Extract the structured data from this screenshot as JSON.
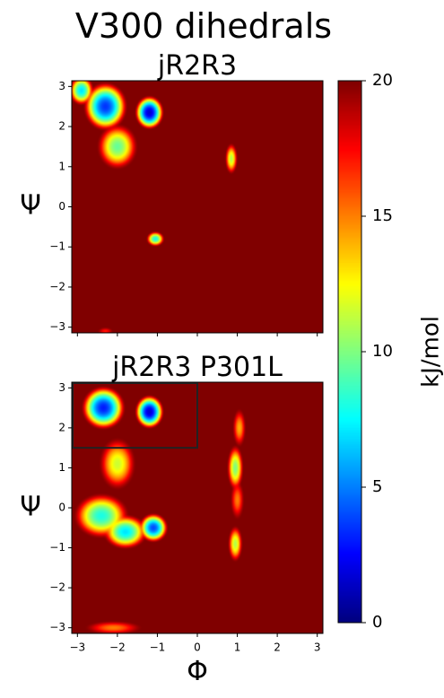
{
  "figure": {
    "title": "V300 dihedrals"
  },
  "chart_data": [
    {
      "type": "heatmap",
      "title": "jR2R3",
      "xlabel": "",
      "ylabel": "Ψ",
      "xlim": [
        -3.1416,
        3.1416
      ],
      "ylim": [
        -3.1416,
        3.1416
      ],
      "xticks": [
        -3,
        -2,
        -1,
        0,
        1,
        2,
        3
      ],
      "yticks": [
        -3,
        -2,
        -1,
        0,
        1,
        2,
        3
      ],
      "xtick_labels_visible": false,
      "background_value": 20,
      "basins": [
        {
          "phi": -2.3,
          "psi": 2.5,
          "sphi": 0.45,
          "spsi": 0.5,
          "min": 3.5
        },
        {
          "phi": -1.2,
          "psi": 2.35,
          "sphi": 0.3,
          "spsi": 0.35,
          "min": 1.5
        },
        {
          "phi": -2.0,
          "psi": 1.5,
          "sphi": 0.4,
          "spsi": 0.45,
          "min": 9.5
        },
        {
          "phi": -2.9,
          "psi": 2.9,
          "sphi": 0.25,
          "spsi": 0.3,
          "min": 7
        },
        {
          "phi": 0.85,
          "psi": 1.2,
          "sphi": 0.12,
          "spsi": 0.3,
          "min": 11
        },
        {
          "phi": -1.05,
          "psi": -0.8,
          "sphi": 0.18,
          "spsi": 0.15,
          "min": 8
        },
        {
          "phi": -2.3,
          "psi": -3.1,
          "sphi": 0.12,
          "spsi": 0.06,
          "min": 17
        }
      ]
    },
    {
      "type": "heatmap",
      "title": "jR2R3 P301L",
      "xlabel": "Φ",
      "ylabel": "Ψ",
      "xlim": [
        -3.1416,
        3.1416
      ],
      "ylim": [
        -3.1416,
        3.1416
      ],
      "xticks": [
        -3,
        -2,
        -1,
        0,
        1,
        2,
        3
      ],
      "yticks": [
        -3,
        -2,
        -1,
        0,
        1,
        2,
        3
      ],
      "xtick_labels_visible": true,
      "background_value": 20,
      "highlight_box": {
        "phi0": -3.1416,
        "phi1": 0.0,
        "psi0": 1.5,
        "psi1": 3.1416
      },
      "basins": [
        {
          "phi": -2.35,
          "psi": 2.5,
          "sphi": 0.45,
          "spsi": 0.45,
          "min": 3
        },
        {
          "phi": -1.2,
          "psi": 2.4,
          "sphi": 0.3,
          "spsi": 0.35,
          "min": 1.5
        },
        {
          "phi": -2.0,
          "psi": 1.1,
          "sphi": 0.35,
          "spsi": 0.5,
          "min": 11.5
        },
        {
          "phi": -2.4,
          "psi": -0.2,
          "sphi": 0.55,
          "spsi": 0.45,
          "min": 8
        },
        {
          "phi": -1.1,
          "psi": -0.5,
          "sphi": 0.3,
          "spsi": 0.3,
          "min": 4
        },
        {
          "phi": -1.8,
          "psi": -0.6,
          "sphi": 0.45,
          "spsi": 0.35,
          "min": 7
        },
        {
          "phi": 0.95,
          "psi": 1.0,
          "sphi": 0.16,
          "spsi": 0.45,
          "min": 10
        },
        {
          "phi": 1.05,
          "psi": 2.0,
          "sphi": 0.12,
          "spsi": 0.35,
          "min": 14
        },
        {
          "phi": 0.95,
          "psi": -0.9,
          "sphi": 0.14,
          "spsi": 0.35,
          "min": 11
        },
        {
          "phi": 1.0,
          "psi": 0.2,
          "sphi": 0.12,
          "spsi": 0.35,
          "min": 15
        },
        {
          "phi": -2.1,
          "psi": -3.0,
          "sphi": 0.5,
          "spsi": 0.12,
          "min": 15
        }
      ]
    }
  ],
  "colorbar": {
    "label": "kJ/mol",
    "min": 0,
    "max": 20,
    "colormap": "jet",
    "ticks": [
      0,
      5,
      10,
      15,
      20
    ]
  }
}
